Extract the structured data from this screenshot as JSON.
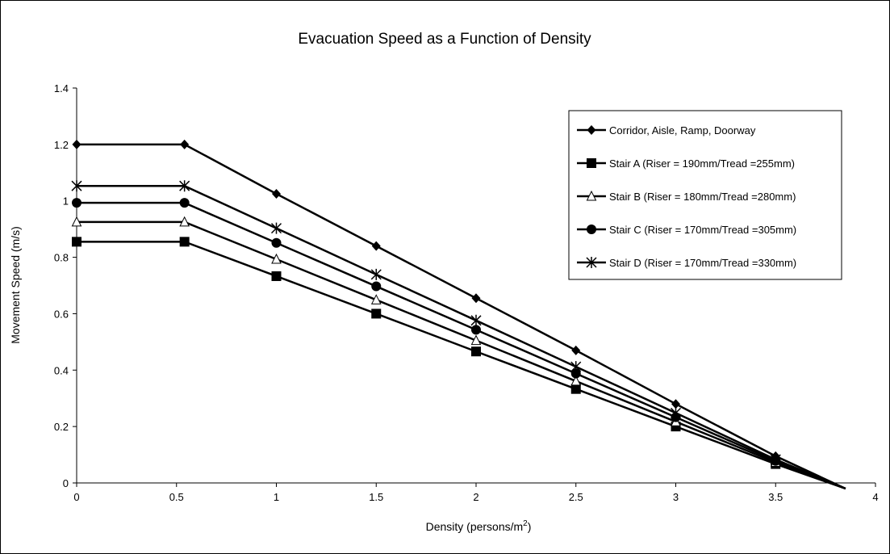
{
  "chart_data": {
    "type": "line",
    "title": "Evacuation Speed as a Function of Density",
    "xlabel": "Density (persons/m",
    "xlabel_sup": "2",
    "xlabel_suffix": ")",
    "ylabel": "Movement Speed (m/s)",
    "xlim": [
      0,
      4
    ],
    "ylim": [
      0,
      1.4
    ],
    "xticks": [
      "0",
      "0.5",
      "1",
      "1.5",
      "2",
      "2.5",
      "3",
      "3.5",
      "4"
    ],
    "yticks": [
      "0",
      "0.2",
      "0.4",
      "0.6",
      "0.8",
      "1",
      "1.2",
      "1.4"
    ],
    "grid": false,
    "legend_position": "top-right",
    "series": [
      {
        "name": "Corridor, Aisle, Ramp, Doorway",
        "marker": "diamond-filled",
        "x": [
          0,
          0.54,
          1,
          1.5,
          2,
          2.5,
          3,
          3.5
        ],
        "y": [
          1.2,
          1.2,
          1.025,
          0.84,
          0.655,
          0.47,
          0.28,
          0.095
        ],
        "end": [
          3.85,
          -0.02
        ]
      },
      {
        "name": "Stair A (Riser = 190mm/Tread =255mm)",
        "marker": "square-filled",
        "x": [
          0,
          0.54,
          1,
          1.5,
          2,
          2.5,
          3,
          3.5
        ],
        "y": [
          0.855,
          0.855,
          0.733,
          0.6,
          0.466,
          0.333,
          0.2,
          0.067
        ],
        "end": [
          3.85,
          -0.02
        ]
      },
      {
        "name": "Stair B (Riser = 180mm/Tread =280mm)",
        "marker": "triangle-open",
        "x": [
          0,
          0.54,
          1,
          1.5,
          2,
          2.5,
          3,
          3.5
        ],
        "y": [
          0.925,
          0.925,
          0.793,
          0.649,
          0.505,
          0.361,
          0.217,
          0.073
        ],
        "end": [
          3.85,
          -0.02
        ]
      },
      {
        "name": "Stair C (Riser = 170mm/Tread =305mm)",
        "marker": "circle-filled",
        "x": [
          0,
          0.54,
          1,
          1.5,
          2,
          2.5,
          3,
          3.5
        ],
        "y": [
          0.993,
          0.993,
          0.851,
          0.697,
          0.543,
          0.388,
          0.233,
          0.078
        ],
        "end": [
          3.85,
          -0.02
        ]
      },
      {
        "name": "Stair D (Riser = 170mm/Tread =330mm)",
        "marker": "asterisk",
        "x": [
          0,
          0.54,
          1,
          1.5,
          2,
          2.5,
          3,
          3.5
        ],
        "y": [
          1.053,
          1.053,
          0.903,
          0.739,
          0.576,
          0.412,
          0.248,
          0.083
        ],
        "end": [
          3.85,
          -0.02
        ]
      }
    ]
  }
}
